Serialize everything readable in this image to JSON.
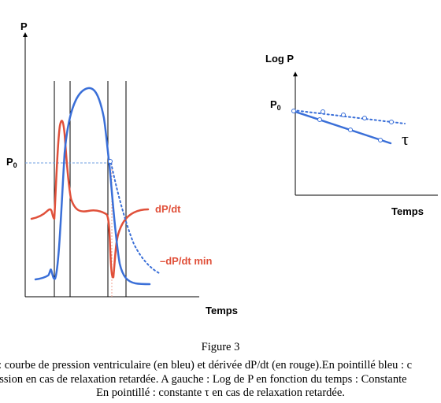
{
  "left_panel": {
    "y_axis_label": "P",
    "x_axis_label": "Temps",
    "p0_label": "P",
    "p0_subscript": "0",
    "dpdt_label": "dP/dt",
    "dpdt_min_label": "–dP/dt min",
    "colors": {
      "pressure": "#3a6fd8",
      "derivative": "#e0503a",
      "guide": "#6f9fe0"
    }
  },
  "right_panel": {
    "y_axis_label": "Log P",
    "x_axis_label": "Temps",
    "p0_label": "P",
    "p0_subscript": "0",
    "tau_label": "τ"
  },
  "caption": {
    "title": "Figure 3",
    "line1": "e : courbe de pression ventriculaire (en bleu) et dérivée dP/dt (en rouge).En pointillé bleu : c",
    "line2": "ression en cas de relaxation retardée. A gauche : Log de P en fonction du temps : Constante",
    "line3": "En pointillé : constante τ en cas de relaxation retardée."
  }
}
